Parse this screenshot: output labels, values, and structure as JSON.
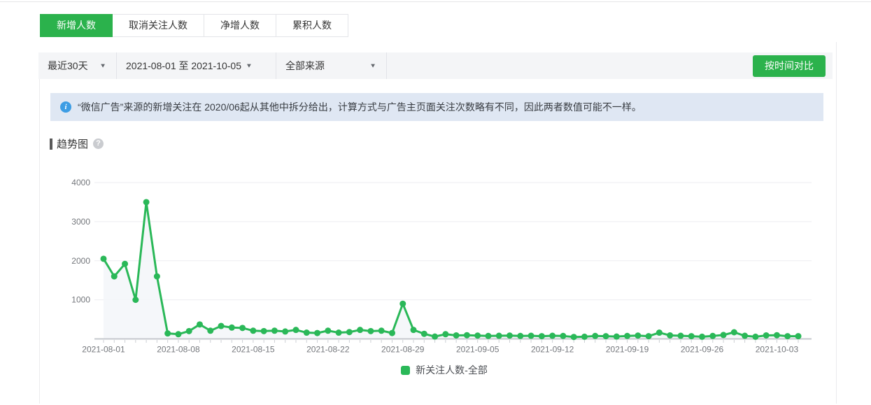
{
  "colors": {
    "accent_green": "#2bb24c",
    "chart_green": "#2ab858",
    "area_fill": "#f4f6f9",
    "grid_line": "#ededf0",
    "axis_line": "#c6c9ce",
    "axis_text": "#73767b",
    "notice_bg": "#dfe7f3",
    "filter_bg": "#f4f5f7"
  },
  "icons": {
    "dropdown_arrow": "▼",
    "info": "i",
    "help": "?"
  },
  "tabs": [
    {
      "label": "新增人数",
      "active": true
    },
    {
      "label": "取消关注人数",
      "active": false
    },
    {
      "label": "净增人数",
      "active": false
    },
    {
      "label": "累积人数",
      "active": false
    }
  ],
  "filter": {
    "time_range": "最近30天",
    "date_range": "2021-08-01 至 2021-10-05",
    "source": "全部来源",
    "compare_button": "按时间对比"
  },
  "notice": {
    "text": "“微信广告”来源的新增关注在 2020/06起从其他中拆分给出，计算方式与广告主页面关注次数略有不同，因此两者数值可能不一样。"
  },
  "section_title": "趋势图",
  "chart_data": {
    "type": "line",
    "title": "趋势图",
    "x": [
      "2021-08-01",
      "2021-08-02",
      "2021-08-03",
      "2021-08-04",
      "2021-08-05",
      "2021-08-06",
      "2021-08-07",
      "2021-08-08",
      "2021-08-09",
      "2021-08-10",
      "2021-08-11",
      "2021-08-12",
      "2021-08-13",
      "2021-08-14",
      "2021-08-15",
      "2021-08-16",
      "2021-08-17",
      "2021-08-18",
      "2021-08-19",
      "2021-08-20",
      "2021-08-21",
      "2021-08-22",
      "2021-08-23",
      "2021-08-24",
      "2021-08-25",
      "2021-08-26",
      "2021-08-27",
      "2021-08-28",
      "2021-08-29",
      "2021-08-30",
      "2021-08-31",
      "2021-09-01",
      "2021-09-02",
      "2021-09-03",
      "2021-09-04",
      "2021-09-05",
      "2021-09-06",
      "2021-09-07",
      "2021-09-08",
      "2021-09-09",
      "2021-09-10",
      "2021-09-11",
      "2021-09-12",
      "2021-09-13",
      "2021-09-14",
      "2021-09-15",
      "2021-09-16",
      "2021-09-17",
      "2021-09-18",
      "2021-09-19",
      "2021-09-20",
      "2021-09-21",
      "2021-09-22",
      "2021-09-23",
      "2021-09-24",
      "2021-09-25",
      "2021-09-26",
      "2021-09-27",
      "2021-09-28",
      "2021-09-29",
      "2021-09-30",
      "2021-10-01",
      "2021-10-02",
      "2021-10-03",
      "2021-10-04",
      "2021-10-05"
    ],
    "series": [
      {
        "name": "新关注人数-全部",
        "color": "#2ab858",
        "values": [
          2050,
          1600,
          1920,
          1000,
          3500,
          1600,
          140,
          120,
          200,
          370,
          210,
          330,
          290,
          280,
          210,
          200,
          210,
          190,
          230,
          160,
          150,
          210,
          160,
          175,
          230,
          200,
          210,
          150,
          900,
          230,
          130,
          60,
          120,
          90,
          95,
          85,
          75,
          80,
          85,
          75,
          80,
          70,
          80,
          75,
          50,
          55,
          75,
          70,
          60,
          75,
          85,
          70,
          160,
          90,
          80,
          70,
          55,
          75,
          100,
          170,
          80,
          55,
          90,
          95,
          70,
          70
        ]
      }
    ],
    "ylim": [
      0,
      4000
    ],
    "yticks": [
      1000,
      2000,
      3000,
      4000
    ],
    "xtick_labels": [
      "2021-08-01",
      "2021-08-08",
      "2021-08-15",
      "2021-08-22",
      "2021-08-29",
      "2021-09-05",
      "2021-09-12",
      "2021-09-19",
      "2021-09-26",
      "2021-10-03"
    ],
    "grid": true,
    "legend": {
      "label": "新关注人数-全部",
      "position": "bottom"
    }
  }
}
